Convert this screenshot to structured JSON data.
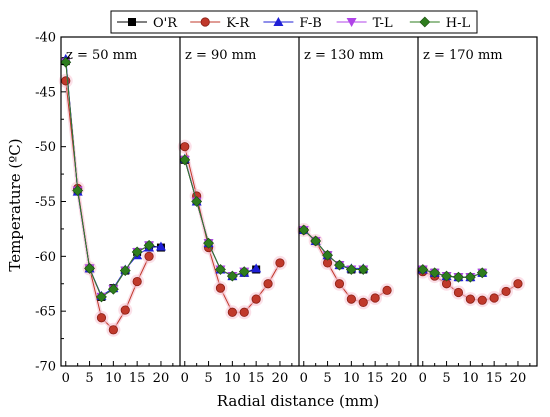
{
  "chart_data": {
    "type": "line",
    "xlabel": "Radial distance (mm)",
    "ylabel": "Temperature (ºC)",
    "ylim": [
      -70,
      -40
    ],
    "yticks": [
      -40,
      -45,
      -50,
      -55,
      -60,
      -65,
      -70
    ],
    "xlim": [
      -1,
      24
    ],
    "xticks": [
      0,
      5,
      10,
      15,
      20
    ],
    "legend": {
      "placement": "top-center",
      "frame": true
    },
    "series_styles": [
      {
        "name": "O'R",
        "marker": "square",
        "color": "#000000",
        "line": "#000000"
      },
      {
        "name": "K-R",
        "marker": "circle",
        "color": "#c0392b",
        "line": "#c0392b"
      },
      {
        "name": "F-B",
        "marker": "triangle-up",
        "color": "#1f1fd6",
        "line": "#1f1fd6"
      },
      {
        "name": "T-L",
        "marker": "triangle-down",
        "color": "#b044e8",
        "line": "#b044e8"
      },
      {
        "name": "H-L",
        "marker": "diamond",
        "color": "#2e7d1e",
        "line": "#2e7d1e"
      }
    ],
    "panels": [
      {
        "label": "z = 50 mm",
        "series": [
          {
            "name": "O'R",
            "x": [
              0,
              2.5,
              5,
              7.5,
              10,
              12.5,
              15,
              17.5,
              20
            ],
            "y": [
              -42.2,
              -54.0,
              -61.1,
              -63.7,
              -62.9,
              -61.3,
              -59.6,
              -59.0,
              -59.2
            ]
          },
          {
            "name": "K-R",
            "x": [
              0,
              2.5,
              5,
              7.5,
              10,
              12.5,
              15,
              17.5
            ],
            "y": [
              -44.0,
              -53.8,
              -61.1,
              -65.6,
              -66.7,
              -64.9,
              -62.3,
              -60.0
            ]
          },
          {
            "name": "F-B",
            "x": [
              0,
              2.5,
              5,
              7.5,
              10,
              12.5,
              15,
              17.5,
              20
            ],
            "y": [
              -42.0,
              -54.1,
              -61.1,
              -63.6,
              -62.9,
              -61.2,
              -59.9,
              -59.2,
              -59.1
            ]
          },
          {
            "name": "T-L",
            "x": [
              0,
              2.5,
              5,
              7.5,
              10,
              12.5,
              15,
              17.5
            ],
            "y": [
              -42.3,
              -54.0,
              -61.1,
              -63.7,
              -63.0,
              -61.3,
              -59.6,
              -59.0
            ]
          },
          {
            "name": "H-L",
            "x": [
              0,
              2.5,
              5,
              7.5,
              10,
              12.5,
              15,
              17.5
            ],
            "y": [
              -42.3,
              -54.0,
              -61.1,
              -63.7,
              -63.0,
              -61.3,
              -59.6,
              -59.0
            ]
          }
        ]
      },
      {
        "label": "z = 90 mm",
        "series": [
          {
            "name": "O'R",
            "x": [
              0,
              2.5,
              5,
              7.5,
              10,
              12.5,
              15
            ],
            "y": [
              -51.2,
              -55.0,
              -58.8,
              -61.2,
              -61.8,
              -61.5,
              -61.2
            ]
          },
          {
            "name": "K-R",
            "x": [
              0,
              2.5,
              5,
              7.5,
              10,
              12.5,
              15,
              17.5,
              20
            ],
            "y": [
              -50.0,
              -54.5,
              -59.2,
              -62.9,
              -65.1,
              -65.1,
              -63.9,
              -62.5,
              -60.6
            ]
          },
          {
            "name": "F-B",
            "x": [
              0,
              2.5,
              5,
              7.5,
              10,
              12.5,
              15
            ],
            "y": [
              -51.1,
              -55.0,
              -58.8,
              -61.2,
              -61.8,
              -61.5,
              -61.1
            ]
          },
          {
            "name": "T-L",
            "x": [
              0,
              2.5,
              5,
              7.5,
              10,
              12.5
            ],
            "y": [
              -51.2,
              -55.0,
              -58.8,
              -61.2,
              -61.8,
              -61.4
            ]
          },
          {
            "name": "H-L",
            "x": [
              0,
              2.5,
              5,
              7.5,
              10,
              12.5
            ],
            "y": [
              -51.2,
              -55.0,
              -58.8,
              -61.2,
              -61.8,
              -61.4
            ]
          }
        ]
      },
      {
        "label": "z = 130 mm",
        "series": [
          {
            "name": "O'R",
            "x": [
              0,
              2.5,
              5,
              7.5,
              10,
              12.5
            ],
            "y": [
              -57.6,
              -58.6,
              -59.9,
              -60.8,
              -61.2,
              -61.2
            ]
          },
          {
            "name": "K-R",
            "x": [
              0,
              2.5,
              5,
              7.5,
              10,
              12.5,
              15,
              17.5
            ],
            "y": [
              -57.6,
              -58.6,
              -60.6,
              -62.5,
              -63.9,
              -64.2,
              -63.8,
              -63.1
            ]
          },
          {
            "name": "F-B",
            "x": [
              0,
              2.5,
              5,
              7.5,
              10,
              12.5
            ],
            "y": [
              -57.6,
              -58.6,
              -59.9,
              -60.8,
              -61.1,
              -61.1
            ]
          },
          {
            "name": "T-L",
            "x": [
              0,
              2.5,
              5,
              7.5,
              10,
              12.5
            ],
            "y": [
              -57.6,
              -58.6,
              -59.9,
              -60.8,
              -61.2,
              -61.2
            ]
          },
          {
            "name": "H-L",
            "x": [
              0,
              2.5,
              5,
              7.5,
              10,
              12.5
            ],
            "y": [
              -57.6,
              -58.6,
              -59.9,
              -60.8,
              -61.2,
              -61.2
            ]
          }
        ]
      },
      {
        "label": "z = 170 mm",
        "series": [
          {
            "name": "O'R",
            "x": [
              0,
              2.5,
              5,
              7.5,
              10,
              12.5
            ],
            "y": [
              -61.2,
              -61.5,
              -61.8,
              -61.9,
              -61.9,
              -61.5
            ]
          },
          {
            "name": "K-R",
            "x": [
              0,
              2.5,
              5,
              7.5,
              10,
              12.5,
              15,
              17.5,
              20
            ],
            "y": [
              -61.4,
              -61.8,
              -62.5,
              -63.3,
              -63.9,
              -64.0,
              -63.8,
              -63.2,
              -62.5
            ]
          },
          {
            "name": "F-B",
            "x": [
              0,
              2.5,
              5,
              7.5,
              10,
              12.5
            ],
            "y": [
              -61.2,
              -61.5,
              -61.8,
              -61.9,
              -61.9,
              -61.5
            ]
          },
          {
            "name": "T-L",
            "x": [
              0,
              2.5,
              5,
              7.5,
              10,
              12.5
            ],
            "y": [
              -61.2,
              -61.5,
              -61.8,
              -61.9,
              -61.9,
              -61.5
            ]
          },
          {
            "name": "H-L",
            "x": [
              0,
              2.5,
              5,
              7.5,
              10,
              12.5
            ],
            "y": [
              -61.2,
              -61.5,
              -61.8,
              -61.9,
              -61.9,
              -61.5
            ]
          }
        ]
      }
    ]
  }
}
